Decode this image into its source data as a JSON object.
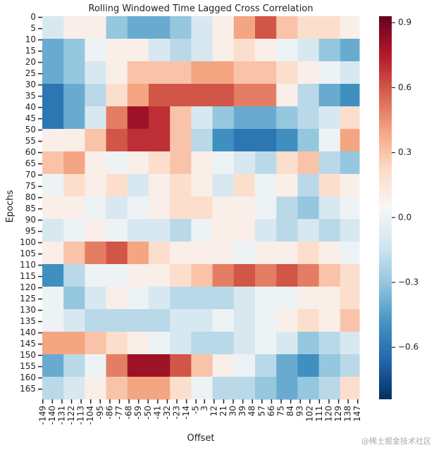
{
  "chart_data": {
    "type": "heatmap",
    "title": "Rolling Windowed Time Lagged Cross Correlation",
    "xlabel": "Offset",
    "ylabel": "Epochs",
    "x_bins": [
      -149.5,
      -129.5,
      -109.5,
      -89.5,
      -69.5,
      -49.5,
      -29.5,
      -9.5,
      10.5,
      30.5,
      50.5,
      70.5,
      90.5,
      110.5,
      130.5,
      148.5
    ],
    "y_bins": [
      -0.5,
      9.5,
      19.5,
      29.5,
      39.5,
      49.5,
      59.5,
      69.5,
      79.5,
      89.5,
      99.5,
      109.5,
      119.5,
      129.5,
      139.5,
      149.5,
      159.5,
      169.5
    ],
    "z": [
      [
        -0.1,
        0.1,
        0.1,
        -0.3,
        -0.4,
        -0.4,
        -0.3,
        -0.1,
        0.1,
        0.4,
        0.6,
        0.3,
        0.2,
        0.2,
        0.1
      ],
      [
        -0.4,
        -0.3,
        0.0,
        0.1,
        0.1,
        -0.1,
        -0.2,
        -0.1,
        0.1,
        0.2,
        0.1,
        0.0,
        -0.1,
        -0.3,
        -0.4
      ],
      [
        -0.4,
        -0.3,
        -0.1,
        0.1,
        0.3,
        0.3,
        0.3,
        0.4,
        0.4,
        0.3,
        0.3,
        0.2,
        0.1,
        0.0,
        -0.1
      ],
      [
        -0.6,
        -0.4,
        -0.2,
        0.2,
        0.4,
        0.6,
        0.6,
        0.6,
        0.6,
        0.5,
        0.5,
        0.1,
        -0.2,
        -0.4,
        -0.5
      ],
      [
        -0.6,
        -0.4,
        -0.1,
        0.5,
        0.8,
        0.7,
        0.3,
        -0.1,
        -0.3,
        -0.4,
        -0.4,
        -0.3,
        -0.2,
        -0.1,
        0.2
      ],
      [
        0.1,
        0.1,
        0.3,
        0.6,
        0.7,
        0.7,
        0.3,
        -0.2,
        -0.5,
        -0.6,
        -0.6,
        -0.5,
        -0.3,
        0.0,
        0.4
      ],
      [
        0.3,
        0.4,
        0.1,
        0.0,
        0.1,
        0.2,
        0.3,
        0.1,
        0.0,
        -0.1,
        -0.2,
        0.2,
        0.3,
        -0.2,
        -0.3
      ],
      [
        0.0,
        0.2,
        0.1,
        0.2,
        -0.1,
        0.1,
        0.2,
        0.1,
        -0.1,
        0.2,
        0.0,
        0.1,
        -0.2,
        0.2,
        0.1
      ],
      [
        0.1,
        0.1,
        0.0,
        -0.1,
        0.0,
        0.1,
        0.2,
        0.2,
        0.1,
        0.1,
        0.0,
        -0.2,
        -0.3,
        -0.1,
        0.0
      ],
      [
        -0.1,
        0.0,
        0.1,
        0.0,
        -0.1,
        -0.1,
        -0.2,
        0.0,
        0.1,
        0.1,
        -0.1,
        -0.2,
        -0.1,
        -0.2,
        -0.1
      ],
      [
        0.1,
        0.3,
        0.5,
        0.6,
        0.4,
        0.2,
        0.1,
        0.1,
        0.1,
        0.0,
        0.1,
        0.1,
        0.2,
        0.1,
        0.0
      ],
      [
        -0.5,
        -0.2,
        0.0,
        0.0,
        0.1,
        0.1,
        0.2,
        0.3,
        0.5,
        0.6,
        0.5,
        0.6,
        0.5,
        0.3,
        0.2
      ],
      [
        0.0,
        -0.3,
        -0.1,
        0.1,
        0.0,
        -0.1,
        -0.2,
        -0.2,
        -0.2,
        -0.1,
        0.0,
        0.0,
        0.1,
        0.1,
        0.2
      ],
      [
        0.0,
        -0.1,
        -0.2,
        -0.2,
        -0.2,
        -0.2,
        -0.1,
        -0.1,
        0.0,
        -0.1,
        0.0,
        0.1,
        0.2,
        0.1,
        0.3
      ],
      [
        0.4,
        0.4,
        0.3,
        0.2,
        0.1,
        0.0,
        -0.1,
        -0.2,
        -0.2,
        -0.1,
        0.0,
        -0.1,
        -0.3,
        -0.2,
        -0.1
      ],
      [
        -0.4,
        -0.2,
        0.0,
        0.5,
        0.8,
        0.8,
        0.6,
        0.3,
        0.1,
        0.0,
        -0.2,
        -0.4,
        -0.5,
        -0.3,
        -0.2
      ],
      [
        -0.2,
        -0.1,
        0.1,
        0.3,
        0.4,
        0.4,
        0.2,
        0.0,
        -0.2,
        -0.2,
        -0.3,
        -0.4,
        -0.3,
        -0.2,
        0.2
      ]
    ],
    "xlim": [
      -149.5,
      148.5
    ],
    "ylim": [
      -0.5,
      169.5
    ],
    "xticks": [
      -149,
      -140,
      -131,
      -122,
      -113,
      -104,
      -95,
      -86,
      -77,
      -68,
      -59,
      -50,
      -41,
      -32,
      -23,
      -14,
      -5,
      3,
      12,
      21,
      30,
      39,
      48,
      57,
      66,
      75,
      84,
      93,
      102,
      111,
      120,
      129,
      138,
      147
    ],
    "yticks": [
      0,
      5,
      10,
      15,
      20,
      25,
      30,
      35,
      40,
      45,
      50,
      55,
      60,
      65,
      70,
      75,
      80,
      85,
      90,
      95,
      100,
      105,
      110,
      115,
      120,
      125,
      130,
      135,
      140,
      145,
      150,
      155,
      160,
      165
    ],
    "clim": [
      -0.84,
      0.93
    ],
    "cticks": [
      0.9,
      0.6,
      0.3,
      {
        "value": 0,
        "label": "0.0"
      },
      {
        "value": -0.3,
        "label": "−0.3"
      },
      {
        "value": -0.6,
        "label": "−0.6"
      }
    ],
    "colors": [
      "#053061",
      "#2166ac",
      "#4393c3",
      "#92c5de",
      "#d1e5f0",
      "#f7f7f7",
      "#fddbc7",
      "#f4a582",
      "#d6604d",
      "#b2182b",
      "#67001f"
    ],
    "watermark": "@稀土掘金技术社区"
  }
}
